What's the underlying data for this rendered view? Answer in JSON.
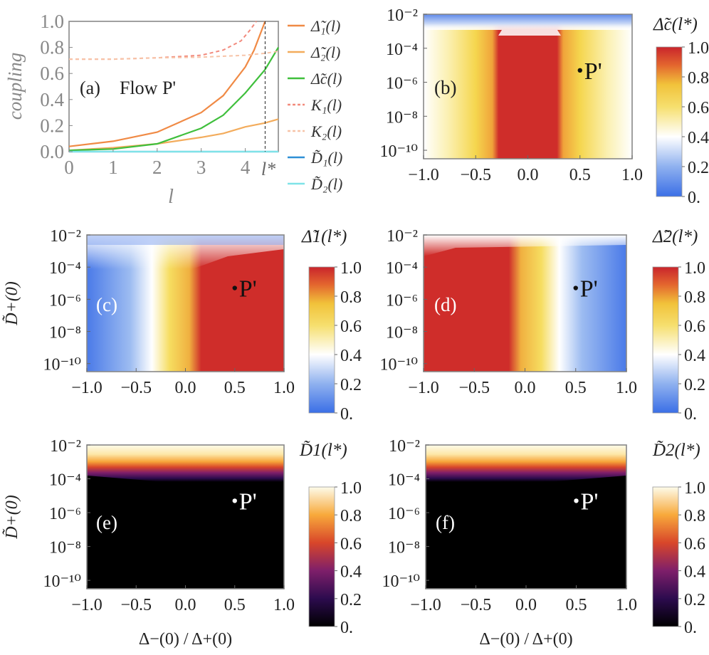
{
  "chart_data": [
    {
      "id": "a",
      "type": "line",
      "panel_label": "(a)",
      "annotation": "Flow P'",
      "xlabel": "l",
      "ylabel": "coupling",
      "xlim": [
        0,
        4.75
      ],
      "ylim": [
        0,
        1.0
      ],
      "x_ticks": [
        "0",
        "1",
        "2",
        "3",
        "4"
      ],
      "y_ticks": [
        "0.0",
        "0.2",
        "0.4",
        "0.6",
        "0.8",
        "1.0"
      ],
      "marker": {
        "x": 4.45,
        "label": "l*"
      },
      "series": [
        {
          "name": "Δ̃1(l)",
          "legend": "Δ̃₁(l)",
          "color": "#f08a45",
          "style": "solid",
          "x": [
            0,
            1,
            2,
            3,
            3.5,
            4,
            4.2,
            4.45
          ],
          "y": [
            0.04,
            0.08,
            0.15,
            0.3,
            0.43,
            0.65,
            0.78,
            1.0
          ]
        },
        {
          "name": "Δ̃2(l)",
          "legend": "Δ̃₂(l)",
          "color": "#f3ac5c",
          "style": "solid",
          "x": [
            0,
            1,
            2,
            3,
            3.5,
            4,
            4.45,
            4.75
          ],
          "y": [
            0.01,
            0.03,
            0.06,
            0.11,
            0.14,
            0.19,
            0.22,
            0.25
          ]
        },
        {
          "name": "Δ̃c(l)",
          "legend": "Δ̃c(l)",
          "color": "#3fbf3c",
          "style": "solid",
          "x": [
            0,
            1,
            2,
            3,
            3.5,
            4,
            4.45,
            4.75
          ],
          "y": [
            0.01,
            0.02,
            0.06,
            0.18,
            0.28,
            0.45,
            0.63,
            0.8
          ]
        },
        {
          "name": "K1(l)",
          "legend": "K₁(l)",
          "color": "#f28a7d",
          "style": "dashed",
          "x": [
            0,
            1,
            2,
            3,
            3.5,
            3.9,
            4.1,
            4.25
          ],
          "y": [
            0.71,
            0.71,
            0.72,
            0.74,
            0.78,
            0.85,
            0.93,
            1.0
          ]
        },
        {
          "name": "K2(l)",
          "legend": "K₂(l)",
          "color": "#f7c4a8",
          "style": "dashed",
          "x": [
            0,
            1,
            2,
            3,
            4,
            4.45,
            4.75
          ],
          "y": [
            0.71,
            0.71,
            0.72,
            0.725,
            0.74,
            0.755,
            0.77
          ]
        },
        {
          "name": "D̃1(l)",
          "legend": "D̃₁(l)",
          "color": "#2e8fd6",
          "style": "solid",
          "x": [
            0,
            4.75
          ],
          "y": [
            0.0,
            0.0
          ]
        },
        {
          "name": "D̃2(l)",
          "legend": "D̃₂(l)",
          "color": "#7fe3e8",
          "style": "solid",
          "x": [
            0,
            4.75
          ],
          "y": [
            0.0,
            0.0
          ]
        }
      ]
    },
    {
      "id": "b",
      "type": "heatmap",
      "panel_label": "(b)",
      "point_label": "P'",
      "colorbar_title": "Δ̃c(l*)",
      "colormap": "rainbow",
      "x_range": [
        -1.0,
        1.0
      ],
      "y_range_log10": [
        -10.5,
        -2
      ],
      "point": {
        "x": 0.5,
        "y_log10": -5.3
      },
      "x_ticks": [
        "−1.0",
        "−0.5",
        "0.0",
        "0.5",
        "1.0"
      ],
      "y_ticks": [
        "10⁻¹⁰",
        "10⁻⁸",
        "10⁻⁶",
        "10⁻⁴",
        "10⁻²"
      ],
      "colorbar_ticks": [
        "0.",
        "0.2",
        "0.4",
        "0.6",
        "0.8",
        "1.0"
      ],
      "ylabel": "",
      "xlabel": ""
    },
    {
      "id": "c",
      "type": "heatmap",
      "panel_label": "(c)",
      "point_label": "P'",
      "colorbar_title": "Δ̃1(l*)",
      "colormap": "rainbow",
      "x_range": [
        -1.0,
        1.0
      ],
      "y_range_log10": [
        -10.5,
        -2
      ],
      "point": {
        "x": 0.5,
        "y_log10": -5.3
      },
      "x_ticks": [
        "−1.0",
        "−0.5",
        "0.0",
        "0.5",
        "1.0"
      ],
      "y_ticks": [
        "10⁻¹⁰",
        "10⁻⁸",
        "10⁻⁶",
        "10⁻⁴",
        "10⁻²"
      ],
      "colorbar_ticks": [
        "0.",
        "0.2",
        "0.4",
        "0.6",
        "0.8",
        "1.0"
      ],
      "ylabel": "D̃+(0)",
      "xlabel": ""
    },
    {
      "id": "d",
      "type": "heatmap",
      "panel_label": "(d)",
      "point_label": "P'",
      "colorbar_title": "Δ̃2(l*)",
      "colormap": "rainbow",
      "x_range": [
        -1.0,
        1.0
      ],
      "y_range_log10": [
        -10.5,
        -2
      ],
      "point": {
        "x": 0.5,
        "y_log10": -5.3
      },
      "x_ticks": [
        "−1.0",
        "−0.5",
        "0.0",
        "0.5",
        "1.0"
      ],
      "y_ticks": [
        "10⁻¹⁰",
        "10⁻⁸",
        "10⁻⁶",
        "10⁻⁴",
        "10⁻²"
      ],
      "colorbar_ticks": [
        "0.",
        "0.2",
        "0.4",
        "0.6",
        "0.8",
        "1.0"
      ],
      "ylabel": "",
      "xlabel": ""
    },
    {
      "id": "e",
      "type": "heatmap",
      "panel_label": "(e)",
      "point_label": "P'",
      "colorbar_title": "D̃1(l*)",
      "colormap": "inferno",
      "x_range": [
        -1.0,
        1.0
      ],
      "y_range_log10": [
        -10.5,
        -2
      ],
      "point": {
        "x": 0.5,
        "y_log10": -5.3
      },
      "x_ticks": [
        "−1.0",
        "−0.5",
        "0.0",
        "0.5",
        "1.0"
      ],
      "y_ticks": [
        "10⁻¹⁰",
        "10⁻⁸",
        "10⁻⁶",
        "10⁻⁴",
        "10⁻²"
      ],
      "colorbar_ticks": [
        "0.",
        "0.2",
        "0.4",
        "0.6",
        "0.8",
        "1.0"
      ],
      "ylabel": "D̃+(0)",
      "xlabel": "Δ−(0) / Δ+(0)"
    },
    {
      "id": "f",
      "type": "heatmap",
      "panel_label": "(f)",
      "point_label": "P'",
      "colorbar_title": "D̃2(l*)",
      "colormap": "inferno",
      "x_range": [
        -1.0,
        1.0
      ],
      "y_range_log10": [
        -10.5,
        -2
      ],
      "point": {
        "x": 0.5,
        "y_log10": -5.3
      },
      "x_ticks": [
        "−1.0",
        "−0.5",
        "0.0",
        "0.5",
        "1.0"
      ],
      "y_ticks": [
        "10⁻¹⁰",
        "10⁻⁸",
        "10⁻⁶",
        "10⁻⁴",
        "10⁻²"
      ],
      "colorbar_ticks": [
        "0.",
        "0.2",
        "0.4",
        "0.6",
        "0.8",
        "1.0"
      ],
      "ylabel": "",
      "xlabel": "Δ−(0) / Δ+(0)"
    }
  ]
}
